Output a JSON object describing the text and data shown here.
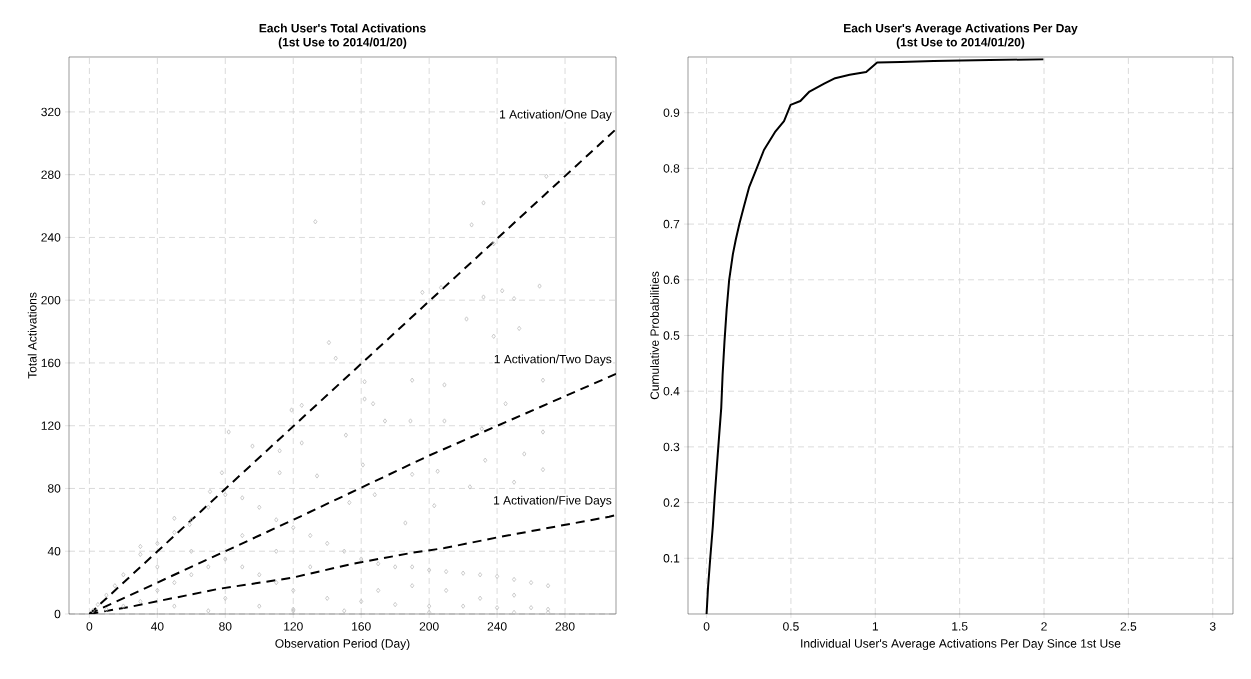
{
  "chart_data": [
    {
      "type": "scatter",
      "title": "Each User's Total Activations",
      "subtitle": "(1st Use to 2014/01/20)",
      "xlabel": "Observation Period (Day)",
      "ylabel": "Total Activations",
      "xlim": [
        -12,
        310
      ],
      "ylim": [
        0,
        355
      ],
      "xticks": [
        0,
        40,
        80,
        120,
        160,
        200,
        240,
        280
      ],
      "yticks": [
        0,
        40,
        80,
        120,
        160,
        200,
        240,
        280,
        320
      ],
      "grid": true,
      "series": [
        {
          "type": "scatter",
          "color": "#bebebe",
          "marker": "diamond",
          "x": [
            133,
            232,
            225,
            238,
            269,
            265,
            196,
            207,
            232,
            243,
            250,
            222,
            253,
            238,
            141,
            145,
            162,
            190,
            209,
            267,
            162,
            167,
            245,
            82,
            125,
            119,
            151,
            174,
            189,
            209,
            231,
            267,
            96,
            112,
            125,
            161,
            190,
            205,
            233,
            256,
            267,
            78,
            112,
            134,
            153,
            168,
            186,
            203,
            224,
            250,
            269,
            30,
            50,
            59,
            71,
            5,
            10,
            15,
            20,
            30,
            40,
            50,
            60,
            70,
            80,
            90,
            100,
            110,
            120,
            130,
            140,
            150,
            160,
            170,
            180,
            190,
            200,
            210,
            220,
            230,
            240,
            250,
            260,
            270,
            2,
            10,
            20,
            30,
            40,
            50,
            60,
            70,
            80,
            90,
            100,
            110,
            120,
            140,
            160,
            180,
            200,
            220,
            240,
            260,
            270,
            80,
            100,
            120,
            150,
            200,
            250,
            270,
            50,
            90,
            110,
            130,
            60,
            40,
            170,
            210,
            250,
            230,
            190,
            120,
            70
          ],
          "values": [
            250,
            262,
            248,
            236,
            279,
            209,
            205,
            208,
            202,
            206,
            201,
            188,
            182,
            177,
            173,
            163,
            148,
            149,
            146,
            149,
            137,
            134,
            134,
            116,
            133,
            130,
            114,
            123,
            123,
            123,
            118,
            116,
            107,
            104,
            109,
            95,
            89,
            91,
            98,
            102,
            92,
            90,
            90,
            88,
            71,
            76,
            58,
            69,
            81,
            84,
            71,
            43,
            61,
            57,
            78,
            6,
            12,
            18,
            25,
            38,
            45,
            52,
            60,
            68,
            76,
            74,
            68,
            60,
            55,
            50,
            45,
            40,
            35,
            32,
            30,
            30,
            28,
            27,
            26,
            25,
            24,
            22,
            20,
            18,
            2,
            3,
            5,
            8,
            15,
            20,
            25,
            30,
            35,
            30,
            25,
            20,
            15,
            10,
            8,
            6,
            5,
            5,
            4,
            4,
            3,
            10,
            5,
            3,
            2,
            1,
            1,
            1,
            5,
            50,
            40,
            30,
            40,
            30,
            15,
            15,
            12,
            10,
            18,
            2,
            2
          ]
        },
        {
          "type": "line",
          "color": "#000000",
          "line_style": "dashed",
          "x": [
            0,
            310
          ],
          "values": [
            0,
            309
          ]
        },
        {
          "type": "line",
          "color": "#000000",
          "line_style": "dashed",
          "x": [
            0,
            120,
            200,
            310
          ],
          "values": [
            0,
            60,
            101,
            153
          ]
        },
        {
          "type": "line",
          "color": "#000000",
          "line_style": "dashed",
          "x": [
            0,
            26,
            76,
            119,
            155,
            190,
            209,
            241,
            306,
            310
          ],
          "values": [
            0,
            5,
            16,
            23,
            32,
            39,
            42,
            49,
            62,
            63
          ]
        }
      ],
      "annotations": [
        "1 Activation/One Day",
        "1 Activation/Two Days",
        "1 Activation/Five Days"
      ]
    },
    {
      "type": "line",
      "title": "Each User's Average Activations Per Day",
      "subtitle": "(1st Use to 2014/01/20)",
      "xlabel": "Individual User's Average Activations Per Day Since 1st Use",
      "ylabel": "Cumulative Probabilities",
      "xlim": [
        -0.11,
        3.12
      ],
      "ylim": [
        0,
        1.0
      ],
      "xticks": [
        0,
        0.5,
        1,
        1.5,
        2,
        2.5,
        3
      ],
      "yticks": [
        0.1,
        0.2,
        0.3,
        0.4,
        0.5,
        0.6,
        0.7,
        0.8,
        0.9
      ],
      "grid": true,
      "series": [
        {
          "color": "#000000",
          "x": [
            0,
            0.009,
            0.022,
            0.037,
            0.048,
            0.061,
            0.074,
            0.087,
            0.095,
            0.106,
            0.119,
            0.134,
            0.156,
            0.173,
            0.195,
            0.221,
            0.253,
            0.297,
            0.34,
            0.405,
            0.459,
            0.498,
            0.556,
            0.61,
            0.697,
            0.762,
            0.848,
            0.946,
            1.011,
            1.152,
            1.346,
            1.996
          ],
          "values": [
            0,
            0.049,
            0.101,
            0.157,
            0.21,
            0.265,
            0.318,
            0.37,
            0.429,
            0.488,
            0.547,
            0.6,
            0.646,
            0.672,
            0.701,
            0.731,
            0.767,
            0.8,
            0.833,
            0.865,
            0.885,
            0.914,
            0.921,
            0.938,
            0.952,
            0.962,
            0.968,
            0.973,
            0.99,
            0.991,
            0.993,
            0.996
          ]
        }
      ]
    }
  ]
}
